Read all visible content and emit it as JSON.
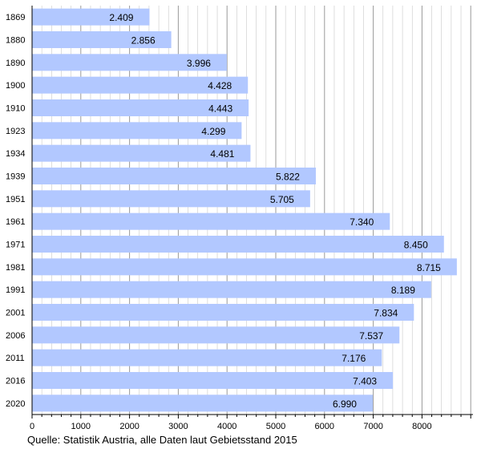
{
  "chart_data": {
    "type": "bar",
    "orientation": "horizontal",
    "categories": [
      "1869",
      "1880",
      "1890",
      "1900",
      "1910",
      "1923",
      "1934",
      "1939",
      "1951",
      "1961",
      "1971",
      "1981",
      "1991",
      "2001",
      "2006",
      "2011",
      "2016",
      "2020"
    ],
    "values": [
      2409,
      2856,
      3996,
      4428,
      4443,
      4299,
      4481,
      5822,
      5705,
      7340,
      8450,
      8715,
      8189,
      7834,
      7537,
      7176,
      7403,
      6990
    ],
    "value_labels": [
      "2.409",
      "2.856",
      "3.996",
      "4.428",
      "4.443",
      "4.299",
      "4.481",
      "5.822",
      "5.705",
      "7.340",
      "8.450",
      "8.715",
      "8.189",
      "7.834",
      "7.537",
      "7.176",
      "7.403",
      "6.990"
    ],
    "xlim": [
      0,
      9000
    ],
    "x_ticks": [
      0,
      1000,
      2000,
      3000,
      4000,
      5000,
      6000,
      7000,
      8000
    ],
    "grid": true,
    "bar_color": "#b2c8ff",
    "grid_color": "#c8c8c8",
    "source": "Quelle: Statistik Austria, alle Daten laut Gebietsstand 2015"
  }
}
